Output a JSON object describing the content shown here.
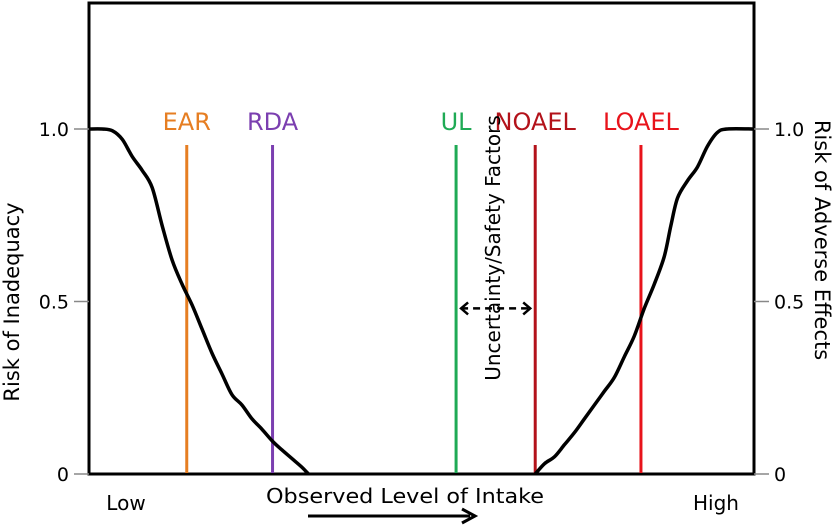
{
  "chart_data": {
    "type": "line",
    "title": "",
    "xlabel": "Observed Level of Intake",
    "x_ends": {
      "low": "Low",
      "high": "High"
    },
    "xlim": [
      0,
      100
    ],
    "left_axis": {
      "label": "Risk of Inadequacy",
      "ylim": [
        0,
        1
      ],
      "ticks": [
        {
          "value": 1.0,
          "label": "1.0"
        },
        {
          "value": 0.5,
          "label": "0.5"
        },
        {
          "value": 0,
          "label": "0"
        }
      ]
    },
    "right_axis": {
      "label": "Risk of Adverse Effects",
      "ylim": [
        0,
        1
      ],
      "ticks": [
        {
          "value": 1.0,
          "label": "1.0"
        },
        {
          "value": 0.5,
          "label": "0.5"
        },
        {
          "value": 0,
          "label": "0"
        }
      ]
    },
    "series": [
      {
        "name": "Risk of Inadequacy",
        "color": "#000000",
        "points": [
          [
            0,
            1.0
          ],
          [
            2,
            1.0
          ],
          [
            3.5,
            0.995
          ],
          [
            5,
            0.97
          ],
          [
            6.5,
            0.92
          ],
          [
            8,
            0.88
          ],
          [
            9.5,
            0.83
          ],
          [
            11,
            0.72
          ],
          [
            12.5,
            0.62
          ],
          [
            14,
            0.55
          ],
          [
            15.5,
            0.49
          ],
          [
            17,
            0.42
          ],
          [
            18.5,
            0.35
          ],
          [
            20,
            0.29
          ],
          [
            21.5,
            0.23
          ],
          [
            23,
            0.2
          ],
          [
            24.5,
            0.16
          ],
          [
            26,
            0.13
          ],
          [
            27.6,
            0.095
          ],
          [
            29,
            0.07
          ],
          [
            30.5,
            0.045
          ],
          [
            32,
            0.02
          ],
          [
            33,
            0.0
          ]
        ]
      },
      {
        "name": "Risk of Adverse Effects",
        "color": "#000000",
        "points": [
          [
            67.1,
            0.0
          ],
          [
            68.5,
            0.03
          ],
          [
            70,
            0.05
          ],
          [
            71.5,
            0.085
          ],
          [
            73,
            0.12
          ],
          [
            74.5,
            0.16
          ],
          [
            76,
            0.2
          ],
          [
            77.5,
            0.24
          ],
          [
            79,
            0.28
          ],
          [
            80.5,
            0.34
          ],
          [
            82,
            0.4
          ],
          [
            83.5,
            0.48
          ],
          [
            85,
            0.55
          ],
          [
            86.5,
            0.63
          ],
          [
            87.5,
            0.72
          ],
          [
            88.5,
            0.8
          ],
          [
            90,
            0.85
          ],
          [
            91.5,
            0.89
          ],
          [
            93,
            0.95
          ],
          [
            94.5,
            0.99
          ],
          [
            96,
            1.0
          ],
          [
            100,
            1.0
          ]
        ]
      }
    ],
    "reference_lines": [
      {
        "label": "EAR",
        "x": 14.7,
        "color": "#e67e22"
      },
      {
        "label": "RDA",
        "x": 27.6,
        "color": "#7b3fb0"
      },
      {
        "label": "UL",
        "x": 55.2,
        "color": "#1faa55"
      },
      {
        "label": "NOAEL",
        "x": 67.1,
        "color": "#b3121a"
      },
      {
        "label": "LOAEL",
        "x": 83.0,
        "color": "#e8131b"
      }
    ],
    "annotations": [
      {
        "text": "Uncertainty/Safety Factors",
        "type": "double-arrow",
        "from": "UL",
        "to": "NOAEL",
        "y": 0.48
      }
    ],
    "grid": false,
    "legend": "none"
  }
}
